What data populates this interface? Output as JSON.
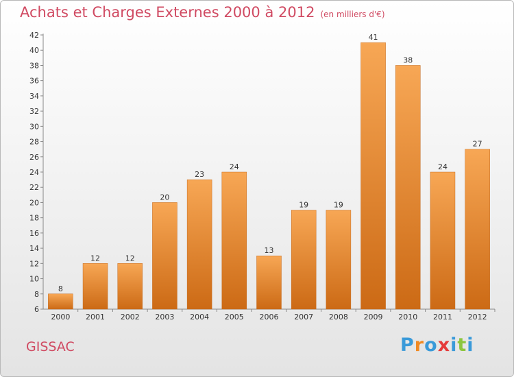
{
  "title": "Achats et Charges Externes 2000 à 2012",
  "unit": "(en milliers d'€)",
  "commune": "GISSAC",
  "brand": "Proxiti",
  "colors": {
    "bar_light": "#f7a755",
    "bar_dark": "#cc6a15",
    "title": "#d04a62",
    "brand_letters": [
      "#3a9ad9",
      "#f08a24",
      "#3a9ad9",
      "#e53a3a",
      "#3a9ad9",
      "#8cc63f",
      "#3a9ad9"
    ]
  },
  "chart_data": {
    "type": "bar",
    "categories": [
      "2000",
      "2001",
      "2002",
      "2003",
      "2004",
      "2005",
      "2006",
      "2007",
      "2008",
      "2009",
      "2010",
      "2011",
      "2012"
    ],
    "values": [
      8,
      12,
      12,
      20,
      23,
      24,
      13,
      19,
      19,
      41,
      38,
      24,
      27
    ],
    "data_labels": [
      "8",
      "12",
      "12",
      "20",
      "23",
      "24",
      "13",
      "19",
      "19",
      "41",
      "38",
      "24",
      "27"
    ],
    "title": "Achats et Charges Externes 2000 à 2012",
    "xlabel": "",
    "ylabel": "",
    "ylim": [
      6,
      42
    ],
    "yticks": [
      "6",
      "8",
      "10",
      "12",
      "14",
      "16",
      "18",
      "20",
      "22",
      "24",
      "26",
      "28",
      "30",
      "32",
      "34",
      "36",
      "38",
      "40",
      "42"
    ],
    "grid": false,
    "legend": "none"
  }
}
